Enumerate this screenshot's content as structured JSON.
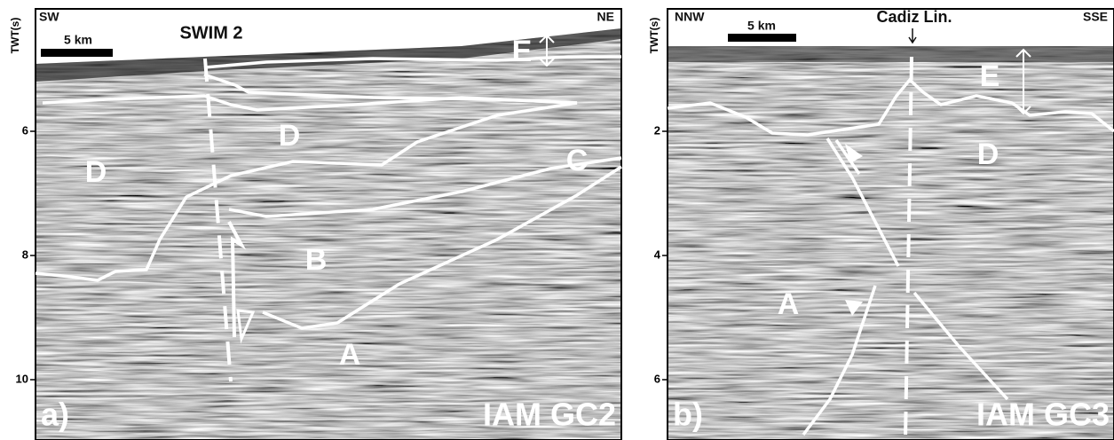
{
  "panels": [
    {
      "axis_label": "TWT(s)",
      "ticks": [
        6,
        8,
        10
      ],
      "left_direction": "SW",
      "right_direction": "NE",
      "scale_bar": "5 km",
      "section_title": "SWIM 2",
      "units": [
        "E",
        "D",
        "D",
        "C",
        "B",
        "A"
      ],
      "panel_label": "a)",
      "line_name": "IAM GC2"
    },
    {
      "axis_label": "TWT(s)",
      "ticks": [
        2,
        4,
        6
      ],
      "left_direction": "NNW",
      "right_direction": "SSE",
      "scale_bar": "5 km",
      "section_title": "Cadiz Lin.",
      "units": [
        "E",
        "D",
        "A"
      ],
      "panel_label": "b)",
      "line_name": "IAM GC3"
    }
  ]
}
